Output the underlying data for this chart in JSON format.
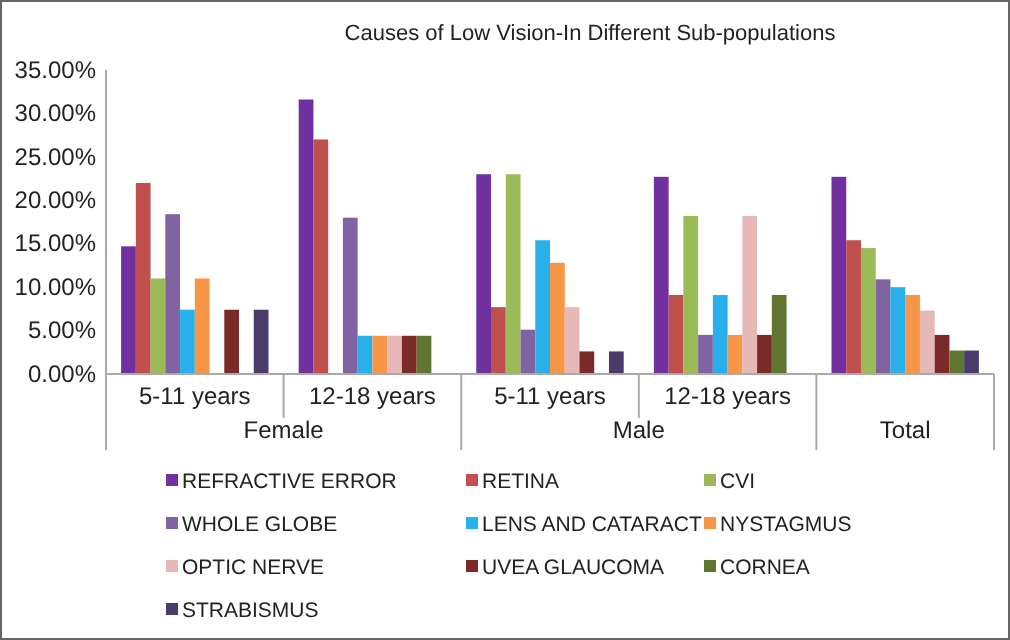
{
  "chart_data": {
    "type": "bar",
    "title": "Causes of Low Vision-In Different Sub-populations",
    "categories": [
      "5-11 years",
      "12-18 years",
      "5-11 years",
      "12-18 years",
      null
    ],
    "annotations": [
      "Female",
      "Male",
      "Total"
    ],
    "series": [
      {
        "name": "REFRACTIVE ERROR",
        "color": "#7030a0",
        "values": [
          14.7,
          31.6,
          23.0,
          22.7,
          22.7
        ]
      },
      {
        "name": "RETINA",
        "color": "#c0504d",
        "values": [
          22.0,
          27.0,
          7.7,
          9.1,
          15.4
        ]
      },
      {
        "name": "CVI",
        "color": "#9bbb59",
        "values": [
          11.0,
          0,
          23.0,
          18.2,
          14.5
        ]
      },
      {
        "name": "WHOLE GLOBE",
        "color": "#8064a2",
        "values": [
          18.4,
          18.0,
          5.1,
          4.5,
          10.9
        ]
      },
      {
        "name": "LENS AND CATARACT",
        "color": "#29b0ea",
        "values": [
          7.4,
          4.4,
          15.4,
          9.1,
          10.0
        ]
      },
      {
        "name": "NYSTAGMUS",
        "color": "#f79646",
        "values": [
          11.0,
          4.4,
          12.8,
          4.5,
          9.1
        ]
      },
      {
        "name": "OPTIC NERVE",
        "color": "#e6b9b8",
        "values": [
          0,
          4.4,
          7.7,
          18.2,
          7.3
        ]
      },
      {
        "name": "UVEA GLAUCOMA",
        "color": "#7b2a2a",
        "values": [
          7.4,
          4.4,
          2.6,
          4.5,
          4.5
        ]
      },
      {
        "name": "CORNEA",
        "color": "#5f7530",
        "values": [
          0,
          4.4,
          0,
          9.1,
          2.7
        ]
      },
      {
        "name": "STRABISMUS",
        "color": "#4a3b6b",
        "values": [
          7.4,
          0,
          2.6,
          0,
          2.7
        ]
      }
    ],
    "ylim": [
      0,
      35
    ],
    "yticks": [
      {
        "value": 0,
        "label": "0.00%"
      },
      {
        "value": 5,
        "label": "5.00%"
      },
      {
        "value": 10,
        "label": "10.00%"
      },
      {
        "value": 15,
        "label": "15.00%"
      },
      {
        "value": 20,
        "label": "20.00%"
      },
      {
        "value": 25,
        "label": "25.00%"
      },
      {
        "value": 30,
        "label": "30.00%"
      },
      {
        "value": 35,
        "label": "35.00%"
      }
    ],
    "grid": false,
    "legend": "bottom"
  }
}
